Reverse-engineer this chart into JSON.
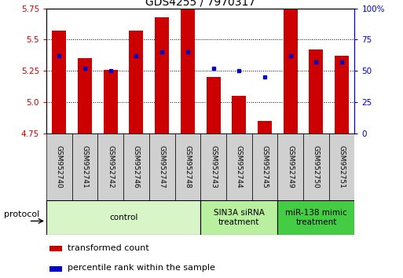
{
  "title": "GDS4255 / 7970317",
  "samples": [
    "GSM952740",
    "GSM952741",
    "GSM952742",
    "GSM952746",
    "GSM952747",
    "GSM952748",
    "GSM952743",
    "GSM952744",
    "GSM952745",
    "GSM952749",
    "GSM952750",
    "GSM952751"
  ],
  "red_values": [
    5.57,
    5.35,
    5.26,
    5.57,
    5.68,
    5.75,
    5.2,
    5.05,
    4.85,
    5.75,
    5.42,
    5.37
  ],
  "blue_values": [
    62,
    52,
    50,
    62,
    65,
    65,
    52,
    50,
    45,
    62,
    57,
    57
  ],
  "ylim_left": [
    4.75,
    5.75
  ],
  "ylim_right": [
    0,
    100
  ],
  "yticks_left": [
    4.75,
    5.0,
    5.25,
    5.5,
    5.75
  ],
  "yticks_right": [
    0,
    25,
    50,
    75,
    100
  ],
  "ytick_labels_right": [
    "0",
    "25",
    "50",
    "75",
    "100%"
  ],
  "groups": [
    {
      "label": "control",
      "start": 0,
      "end": 6,
      "color": "#d8f5c8"
    },
    {
      "label": "SIN3A siRNA\ntreatment",
      "start": 6,
      "end": 9,
      "color": "#b8f0a0"
    },
    {
      "label": "miR-138 mimic\ntreatment",
      "start": 9,
      "end": 12,
      "color": "#44cc44"
    }
  ],
  "bar_color": "#cc0000",
  "dot_color": "#0000cc",
  "bar_bottom": 4.75,
  "bar_width": 0.55,
  "protocol_label": "protocol",
  "legend_red": "transformed count",
  "legend_blue": "percentile rank within the sample",
  "background_color": "#ffffff",
  "title_fontsize": 10,
  "tick_fontsize": 7.5,
  "sample_fontsize": 6.5
}
